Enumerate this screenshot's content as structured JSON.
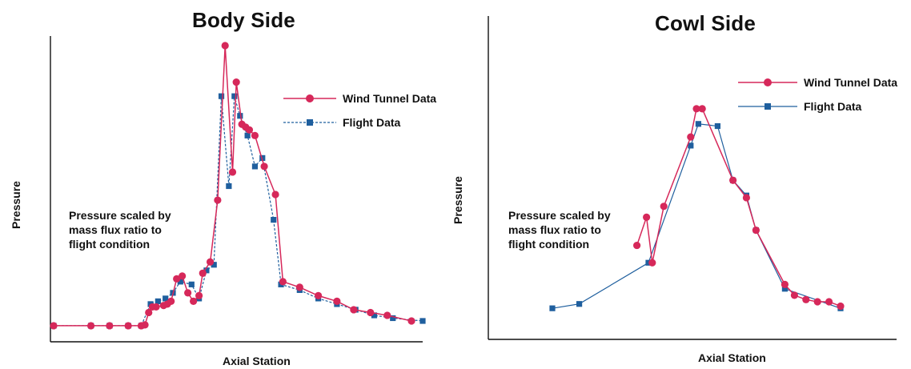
{
  "colors": {
    "wind_tunnel": "#d6285a",
    "flight": "#1f5f9e",
    "axis": "#111111"
  },
  "chart_data": [
    {
      "type": "line",
      "title": "Body Side",
      "xlabel": "Axial Station",
      "ylabel": "Pressure",
      "annotation": "Pressure scaled by\nmass flux ratio to\nflight condition",
      "xlim": [
        0,
        100
      ],
      "ylim": [
        0,
        100
      ],
      "legend_position": "top-right",
      "series": [
        {
          "name": "Wind Tunnel Data",
          "marker": "circle",
          "points": [
            [
              1,
              0.3
            ],
            [
              11,
              0.3
            ],
            [
              16,
              0.3
            ],
            [
              21,
              0.3
            ],
            [
              24.5,
              0.3
            ],
            [
              25.5,
              0.6
            ],
            [
              26.5,
              5
            ],
            [
              27.5,
              7
            ],
            [
              28.5,
              7
            ],
            [
              30.5,
              7.5
            ],
            [
              31.5,
              8
            ],
            [
              32.5,
              9
            ],
            [
              34,
              17
            ],
            [
              35.5,
              18
            ],
            [
              37,
              12
            ],
            [
              38.5,
              9
            ],
            [
              40,
              11
            ],
            [
              41,
              19
            ],
            [
              43,
              23
            ],
            [
              45,
              45
            ],
            [
              47,
              100
            ],
            [
              49,
              55
            ],
            [
              50,
              87
            ],
            [
              51.5,
              72
            ],
            [
              52.5,
              71
            ],
            [
              53.5,
              70
            ],
            [
              55,
              68
            ],
            [
              57.5,
              57
            ],
            [
              60.5,
              47
            ],
            [
              62.5,
              16
            ],
            [
              67,
              14
            ],
            [
              72,
              11
            ],
            [
              77,
              9
            ],
            [
              81.5,
              6
            ],
            [
              86,
              5
            ],
            [
              90.5,
              4
            ],
            [
              97,
              2
            ]
          ]
        },
        {
          "name": "Flight Data",
          "marker": "square",
          "points": [
            [
              1,
              0.3
            ],
            [
              11,
              0.3
            ],
            [
              16,
              0.3
            ],
            [
              21,
              0.3
            ],
            [
              24.5,
              0.3
            ],
            [
              27,
              8
            ],
            [
              29,
              9
            ],
            [
              31,
              10
            ],
            [
              33,
              12
            ],
            [
              35,
              16
            ],
            [
              38,
              15
            ],
            [
              40,
              10
            ],
            [
              42,
              20
            ],
            [
              44,
              22
            ],
            [
              46,
              82
            ],
            [
              48,
              50
            ],
            [
              49.5,
              82
            ],
            [
              51,
              75
            ],
            [
              53,
              68
            ],
            [
              55,
              57
            ],
            [
              57,
              60
            ],
            [
              60,
              38
            ],
            [
              62,
              15
            ],
            [
              67,
              13
            ],
            [
              72,
              10
            ],
            [
              77,
              8
            ],
            [
              82,
              6
            ],
            [
              87,
              4
            ],
            [
              92,
              3
            ],
            [
              100,
              2
            ]
          ]
        }
      ]
    },
    {
      "type": "line",
      "title": "Cowl Side",
      "xlabel": "Axial Station",
      "ylabel": "Pressure",
      "annotation": "Pressure scaled by\nmass flux ratio to\nflight condition",
      "xlim": [
        0,
        100
      ],
      "ylim": [
        0,
        100
      ],
      "legend_position": "top-right",
      "series": [
        {
          "name": "Wind Tunnel Data",
          "marker": "circle",
          "points": [
            [
              32,
              33
            ],
            [
              34.5,
              46
            ],
            [
              36,
              25
            ],
            [
              39,
              51
            ],
            [
              46,
              83
            ],
            [
              47.5,
              96
            ],
            [
              49,
              96
            ],
            [
              57,
              63
            ],
            [
              60.5,
              55
            ],
            [
              63,
              40
            ],
            [
              70.5,
              15
            ],
            [
              73,
              10
            ],
            [
              76,
              8
            ],
            [
              79,
              7
            ],
            [
              82,
              7
            ],
            [
              85,
              5
            ]
          ]
        },
        {
          "name": "Flight Data",
          "marker": "square",
          "points": [
            [
              10,
              4
            ],
            [
              17,
              6
            ],
            [
              35,
              25
            ],
            [
              46,
              79
            ],
            [
              48,
              89
            ],
            [
              53,
              88
            ],
            [
              57,
              63
            ],
            [
              60.5,
              56
            ],
            [
              63,
              40
            ],
            [
              70.5,
              13
            ],
            [
              85,
              4
            ]
          ]
        }
      ]
    }
  ]
}
